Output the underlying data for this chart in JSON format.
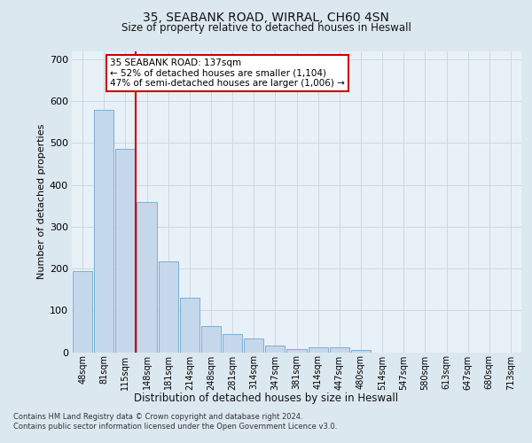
{
  "title1": "35, SEABANK ROAD, WIRRAL, CH60 4SN",
  "title2": "Size of property relative to detached houses in Heswall",
  "xlabel": "Distribution of detached houses by size in Heswall",
  "ylabel": "Number of detached properties",
  "categories": [
    "48sqm",
    "81sqm",
    "115sqm",
    "148sqm",
    "181sqm",
    "214sqm",
    "248sqm",
    "281sqm",
    "314sqm",
    "347sqm",
    "381sqm",
    "414sqm",
    "447sqm",
    "480sqm",
    "514sqm",
    "547sqm",
    "580sqm",
    "613sqm",
    "647sqm",
    "680sqm",
    "713sqm"
  ],
  "values": [
    193,
    580,
    485,
    358,
    217,
    131,
    62,
    44,
    33,
    15,
    8,
    11,
    11,
    6,
    0,
    0,
    0,
    0,
    0,
    0,
    0
  ],
  "bar_color": "#c5d8eb",
  "bar_edge_color": "#7aafd4",
  "vline_color": "#cc0000",
  "annotation_line1": "35 SEABANK ROAD: 137sqm",
  "annotation_line2": "← 52% of detached houses are smaller (1,104)",
  "annotation_line3": "47% of semi-detached houses are larger (1,006) →",
  "annotation_box_edge_color": "#cc0000",
  "ylim": [
    0,
    720
  ],
  "yticks": [
    0,
    100,
    200,
    300,
    400,
    500,
    600,
    700
  ],
  "bg_color": "#dce8f0",
  "plot_bg_color": "#e8f0f8",
  "grid_color": "#c8d4dc",
  "footer1": "Contains HM Land Registry data © Crown copyright and database right 2024.",
  "footer2": "Contains public sector information licensed under the Open Government Licence v3.0."
}
